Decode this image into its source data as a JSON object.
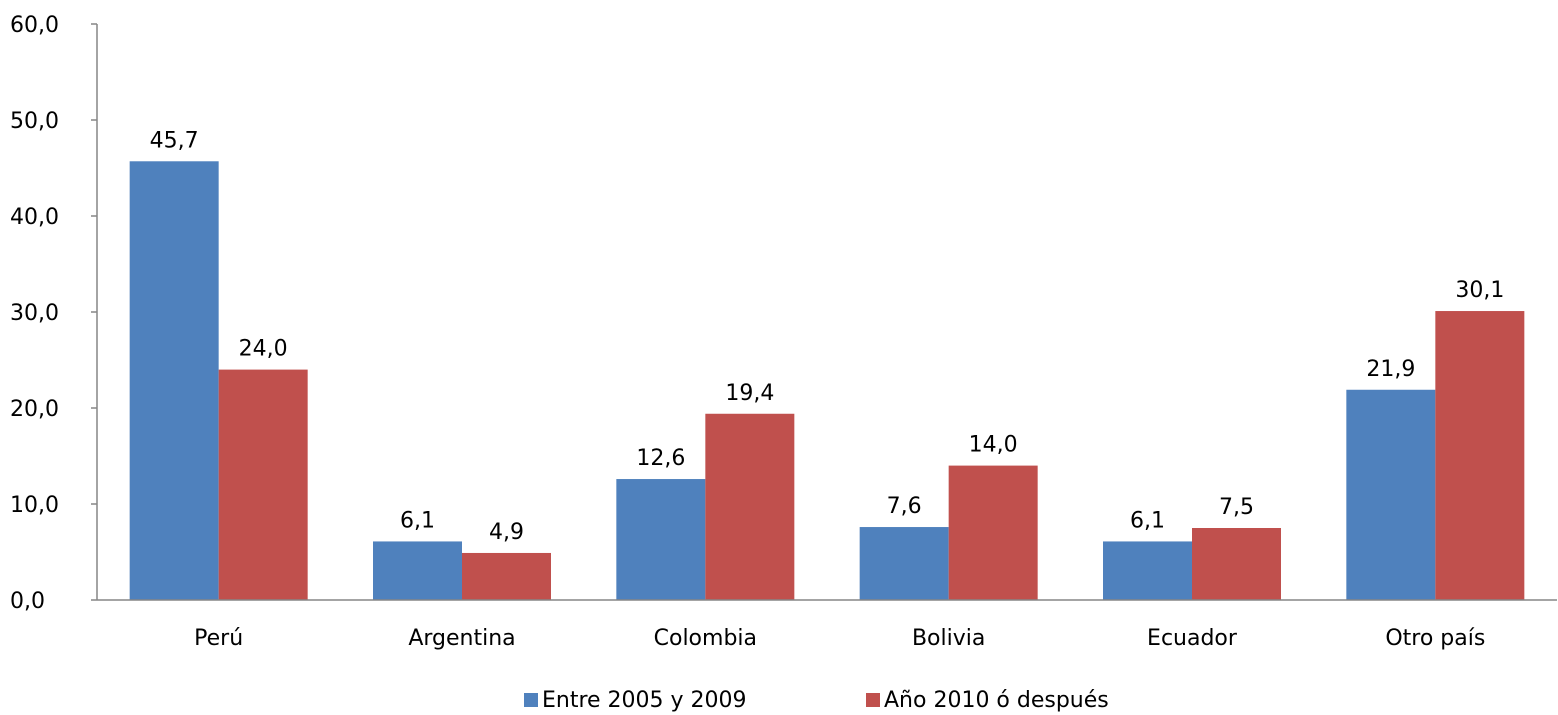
{
  "chart_data": {
    "type": "bar",
    "categories": [
      "Perú",
      "Argentina",
      "Colombia",
      "Bolivia",
      "Ecuador",
      "Otro país"
    ],
    "series": [
      {
        "name": "Entre 2005 y 2009",
        "color": "#4F81BD",
        "values": [
          45.7,
          6.1,
          12.6,
          7.6,
          6.1,
          21.9
        ]
      },
      {
        "name": "Año 2010 ó después",
        "color": "#C0504D",
        "values": [
          24.0,
          4.9,
          19.4,
          14.0,
          7.5,
          30.1
        ]
      }
    ],
    "ylim": [
      0,
      60
    ],
    "yticks": [
      "0,0",
      "10,0",
      "20,0",
      "30,0",
      "40,0",
      "50,0",
      "60,0"
    ],
    "data_labels": [
      [
        "45,7",
        "6,1",
        "12,6",
        "7,6",
        "6,1",
        "21,9"
      ],
      [
        "24,0",
        "4,9",
        "19,4",
        "14,0",
        "7,5",
        "30,1"
      ]
    ],
    "grid": false,
    "legend_position": "bottom"
  }
}
